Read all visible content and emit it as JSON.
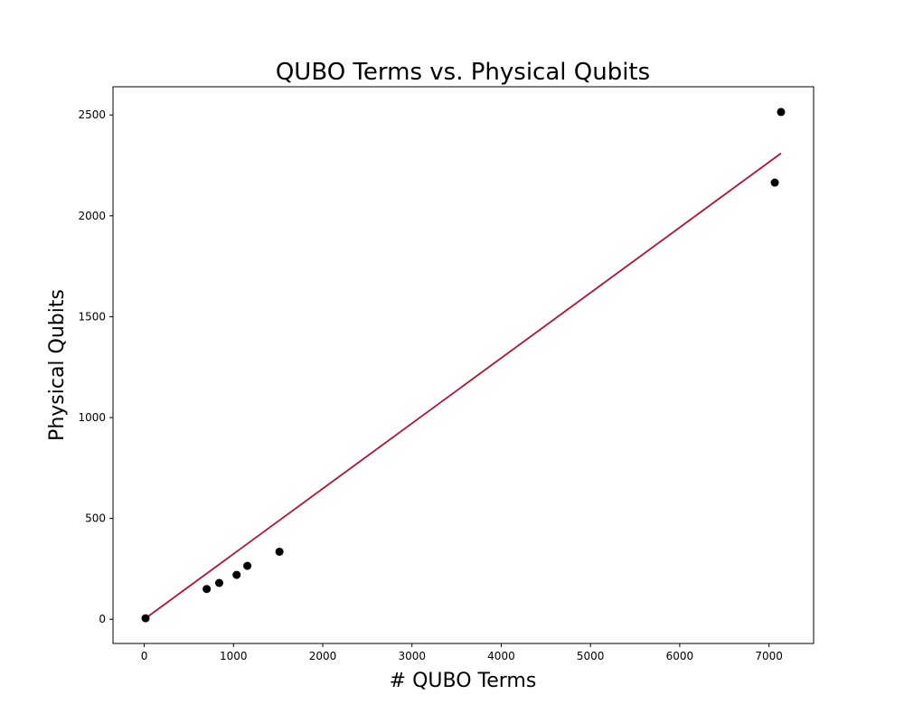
{
  "chart_data": {
    "type": "scatter",
    "title": "QUBO Terms vs. Physical Qubits",
    "xlabel": "# QUBO Terms",
    "ylabel": "Physical Qubits",
    "xlim": [
      -350,
      7500
    ],
    "ylim": [
      -120,
      2640
    ],
    "xticks": [
      0,
      1000,
      2000,
      3000,
      4000,
      5000,
      6000,
      7000
    ],
    "yticks": [
      0,
      500,
      1000,
      1500,
      2000,
      2500
    ],
    "grid": false,
    "series": [
      {
        "type": "scatter",
        "color": "#000000",
        "points": [
          {
            "x": 15,
            "y": 5
          },
          {
            "x": 700,
            "y": 150
          },
          {
            "x": 840,
            "y": 180
          },
          {
            "x": 1035,
            "y": 220
          },
          {
            "x": 1155,
            "y": 265
          },
          {
            "x": 1515,
            "y": 335
          },
          {
            "x": 7065,
            "y": 2165
          },
          {
            "x": 7135,
            "y": 2515
          }
        ]
      },
      {
        "type": "line",
        "color": "#b5122e",
        "points": [
          {
            "x": 15,
            "y": 5
          },
          {
            "x": 7135,
            "y": 2310
          }
        ]
      }
    ]
  }
}
